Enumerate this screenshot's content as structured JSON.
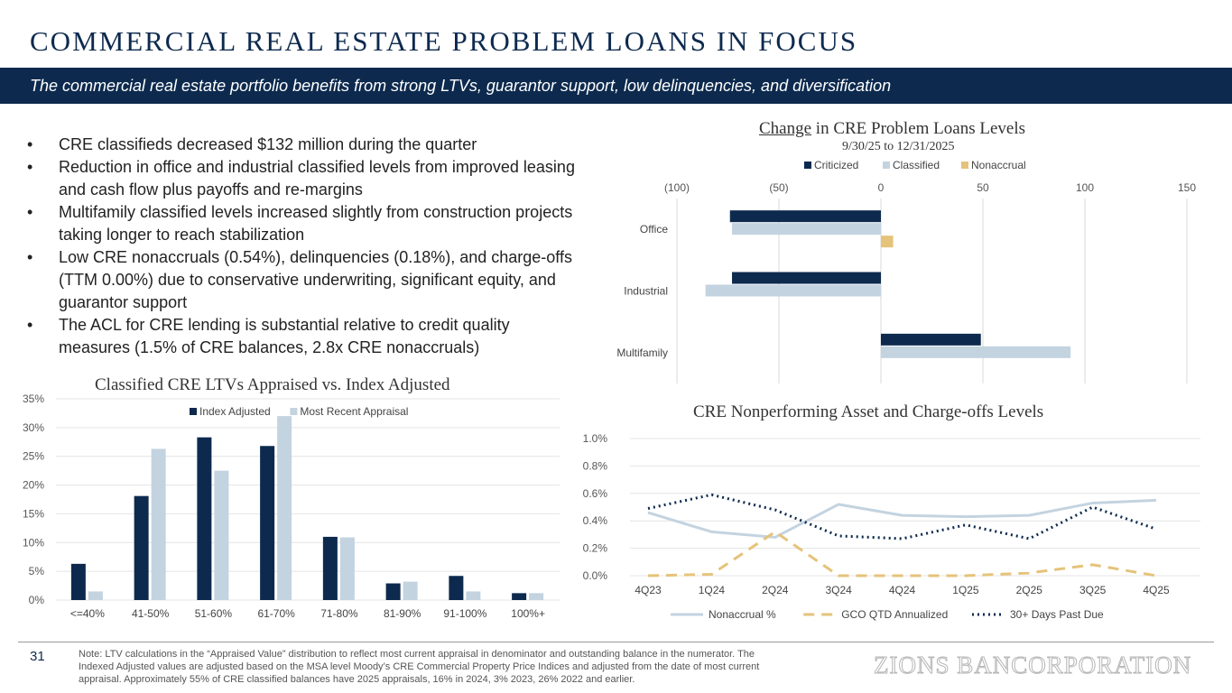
{
  "header": {
    "title": "COMMERCIAL REAL ESTATE PROBLEM LOANS IN FOCUS",
    "subtitle": "The commercial real estate portfolio benefits from strong LTVs, guarantor support, low delinquencies, and diversification"
  },
  "bullets": [
    "CRE classifieds decreased $132 million during the quarter",
    "Reduction in office and industrial classified levels from improved leasing and cash flow plus payoffs and re-margins",
    "Multifamily classified levels increased slightly from construction projects taking longer to reach stabilization",
    "Low CRE nonaccruals (0.54%), delinquencies (0.18%), and charge-offs (TTM 0.00%) due to conservative underwriting, significant equity, and guarantor support",
    "The ACL for CRE lending is substantial relative to credit quality measures (1.5% of CRE balances, 2.8x CRE nonaccruals)"
  ],
  "colors": {
    "navy": "#0d2a4e",
    "light_blue": "#c3d3e0",
    "gold": "#e5c37a"
  },
  "chart_data": [
    {
      "type": "bar",
      "orientation": "horizontal",
      "title_prefix": "Change",
      "title_rest": " in CRE Problem Loans Levels",
      "subtitle": "9/30/25 to 12/31/2025",
      "categories": [
        "Office",
        "Industrial",
        "Multifamily"
      ],
      "series": [
        {
          "name": "Criticized",
          "color": "#0d2a4e",
          "values": [
            -74,
            -73,
            49
          ]
        },
        {
          "name": "Classified",
          "color": "#c3d3e0",
          "values": [
            -73,
            -86,
            93
          ]
        },
        {
          "name": "Nonaccrual",
          "color": "#e5c37a",
          "values": [
            6,
            0,
            0
          ]
        }
      ],
      "xlim": [
        -100,
        150
      ],
      "xticks": [
        -100,
        -50,
        0,
        50,
        100,
        150
      ],
      "xtick_labels": [
        "(100)",
        "(50)",
        "0",
        "50",
        "100",
        "150"
      ],
      "legend": "top"
    },
    {
      "type": "bar",
      "title": "Classified CRE LTVs Appraised vs. Index Adjusted",
      "categories": [
        "<=40%",
        "41-50%",
        "51-60%",
        "61-70%",
        "71-80%",
        "81-90%",
        "91-100%",
        "100%+"
      ],
      "series": [
        {
          "name": "Index Adjusted",
          "color": "#0d2a4e",
          "values": [
            6.3,
            18.1,
            28.3,
            26.8,
            11.0,
            2.9,
            4.2,
            1.2
          ]
        },
        {
          "name": "Most Recent Appraisal",
          "color": "#c3d3e0",
          "values": [
            1.5,
            26.3,
            22.5,
            32.0,
            10.9,
            3.2,
            1.5,
            1.2
          ]
        }
      ],
      "ylim": [
        0,
        35
      ],
      "yticks": [
        0,
        5,
        10,
        15,
        20,
        25,
        30,
        35
      ],
      "ytick_labels": [
        "0%",
        "5%",
        "10%",
        "15%",
        "20%",
        "25%",
        "30%",
        "35%"
      ],
      "legend": "top"
    },
    {
      "type": "line",
      "title": "CRE Nonperforming Asset and Charge-offs Levels",
      "categories": [
        "4Q23",
        "1Q24",
        "2Q24",
        "3Q24",
        "4Q24",
        "1Q25",
        "2Q25",
        "3Q25",
        "4Q25"
      ],
      "series": [
        {
          "name": "Nonaccrual %",
          "color": "#c3d3e0",
          "style": "solid",
          "values": [
            0.46,
            0.32,
            0.28,
            0.52,
            0.44,
            0.43,
            0.44,
            0.53,
            0.55
          ]
        },
        {
          "name": "GCO QTD Annualized",
          "color": "#e5c37a",
          "style": "dashed",
          "values": [
            0.0,
            0.01,
            0.32,
            0.0,
            0.0,
            0.0,
            0.02,
            0.08,
            0.0
          ]
        },
        {
          "name": "30+ Days Past Due",
          "color": "#0d2a4e",
          "style": "dotted",
          "values": [
            0.49,
            0.59,
            0.48,
            0.29,
            0.27,
            0.37,
            0.27,
            0.5,
            0.34
          ]
        }
      ],
      "ylim": [
        0,
        1.0
      ],
      "yticks": [
        0,
        0.2,
        0.4,
        0.6,
        0.8,
        1.0
      ],
      "ytick_labels": [
        "0.0%",
        "0.2%",
        "0.4%",
        "0.6%",
        "0.8%",
        "1.0%"
      ],
      "legend": "bottom"
    }
  ],
  "footer": {
    "page_number": "31",
    "note": "Note: LTV calculations in the “Appraised Value” distribution to reflect most current appraisal in denominator and outstanding balance in the numerator. The Indexed Adjusted values are adjusted based on the MSA level Moody’s CRE Commercial Property Price Indices and adjusted from the date of most current appraisal. Approximately 55% of CRE classified balances have 2025 appraisals, 16% in 2024, 3% 2023, 26% 2022 and earlier.",
    "logo": "ZIONS BANCORPORATION"
  }
}
